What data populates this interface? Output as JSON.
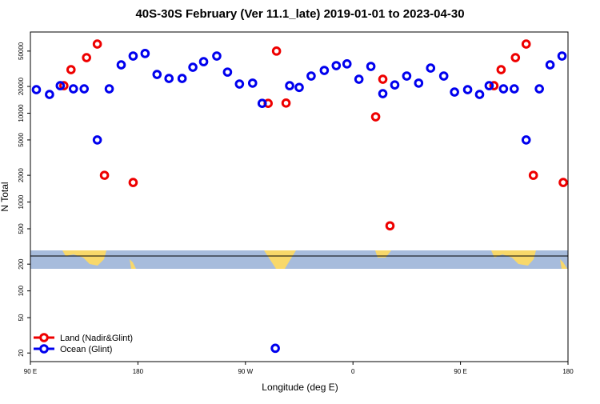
{
  "chart_data": {
    "type": "scatter",
    "title": "40S-30S February (Ver 11.1_late)   2019-01-01 to 2023-04-30",
    "x_label": "Longitude (deg E)",
    "y_label": "N Total",
    "y_scale": "log",
    "legend": "lower left",
    "xlim": [
      90,
      540
    ],
    "ylim": [
      16,
      82000
    ],
    "xticks": [
      {
        "value": 90,
        "label": "90 E"
      },
      180,
      {
        "value": 270,
        "label": "90 W"
      },
      {
        "value": 360,
        "label": "0"
      },
      {
        "value": 450,
        "label": "90 E"
      },
      {
        "value": 540,
        "label": "180"
      }
    ],
    "yticks": [
      20,
      50,
      100,
      200,
      500,
      1000,
      2000,
      5000,
      10000,
      20000,
      50000
    ],
    "series": [
      {
        "name": "Land (Nadir&Glint)",
        "color": "#ee0000",
        "x": [
          118,
          124,
          137,
          146,
          152,
          176,
          289,
          296,
          304,
          379,
          385,
          391,
          478,
          484,
          496,
          505,
          511,
          536
        ],
        "values": [
          20400,
          30900,
          42200,
          60000,
          2000,
          1660,
          12900,
          50000,
          13000,
          9100,
          24100,
          540,
          20400,
          30900,
          42200,
          60000,
          2000,
          1660
        ]
      },
      {
        "name": "Ocean (Glint)",
        "color": "#0000ee",
        "x": [
          95,
          106,
          115,
          126,
          135,
          146,
          156,
          166,
          176,
          186,
          196,
          206,
          217,
          226,
          235,
          246,
          255,
          265,
          276,
          284,
          295,
          307,
          315,
          325,
          336,
          346,
          355,
          365,
          375,
          385,
          395,
          405,
          415,
          425,
          436,
          445,
          456,
          466,
          474,
          486,
          495,
          505,
          516,
          525,
          535
        ],
        "values": [
          18400,
          16250,
          20400,
          18800,
          18800,
          5000,
          18800,
          35000,
          44000,
          47000,
          27300,
          24600,
          24600,
          32900,
          38000,
          44000,
          29000,
          21300,
          21800,
          12900,
          22.6,
          20400,
          19500,
          26200,
          30300,
          34300,
          35900,
          24100,
          33600,
          16600,
          20800,
          26200,
          21800,
          32200,
          26200,
          17300,
          18400,
          16250,
          20400,
          18800,
          18800,
          5000,
          18800,
          35000,
          44000
        ]
      }
    ]
  }
}
